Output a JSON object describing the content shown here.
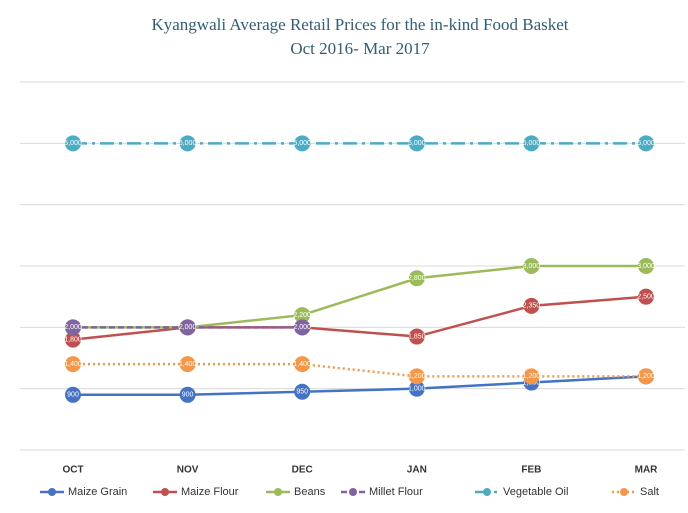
{
  "chart_data": {
    "type": "line",
    "title": "Kyangwali Average Retail Prices for the in-kind Food Basket",
    "subtitle": "Oct 2016- Mar 2017",
    "categories": [
      "OCT",
      "NOV",
      "DEC",
      "JAN",
      "FEB",
      "MAR"
    ],
    "ylim": [
      0,
      6000
    ],
    "yticks": [
      0,
      1000,
      2000,
      3000,
      4000,
      5000,
      6000
    ],
    "grid": true,
    "legend": "bottom",
    "series": [
      {
        "name": "Maize Grain",
        "color": "#4472c4",
        "line_style": "solid",
        "values": [
          900,
          900,
          950,
          1000,
          1100,
          1200
        ],
        "value_labels": [
          "900",
          "900",
          "950",
          "1,000",
          "1,100",
          "1,200"
        ]
      },
      {
        "name": "Maize Flour",
        "color": "#c0504d",
        "line_style": "solid",
        "values": [
          1800,
          2000,
          2000,
          1850,
          2350,
          2500
        ],
        "value_labels": [
          "1,800",
          "2,000",
          "2,000",
          "1,850",
          "2,350",
          "2,500"
        ]
      },
      {
        "name": "Beans",
        "color": "#9bbb59",
        "line_style": "solid",
        "values": [
          2000,
          2000,
          2200,
          2800,
          3000,
          3000
        ],
        "value_labels": [
          "2,000",
          "2,000",
          "2,200",
          "2,800",
          "3,000",
          "3,000"
        ]
      },
      {
        "name": "Millet Flour",
        "color": "#8064a2",
        "line_style": "dash",
        "values": [
          2000,
          2000,
          2000,
          null,
          null,
          null
        ],
        "value_labels": [
          "2,000",
          "2,000",
          "2,000",
          null,
          null,
          null
        ]
      },
      {
        "name": "Vegetable Oil",
        "color": "#4bacc6",
        "line_style": "dashdot",
        "values": [
          5000,
          5000,
          5000,
          5000,
          5000,
          5000
        ],
        "value_labels": [
          "5,000",
          "5,000",
          "5,000",
          "5,000",
          "5,000",
          "5,000"
        ]
      },
      {
        "name": "Salt",
        "color": "#f79646",
        "line_style": "dot",
        "values": [
          1400,
          1400,
          1400,
          1200,
          1200,
          1200
        ],
        "value_labels": [
          "1,400",
          "1,400",
          "1,400",
          "1,200",
          "1,200",
          "1,200"
        ]
      }
    ]
  }
}
